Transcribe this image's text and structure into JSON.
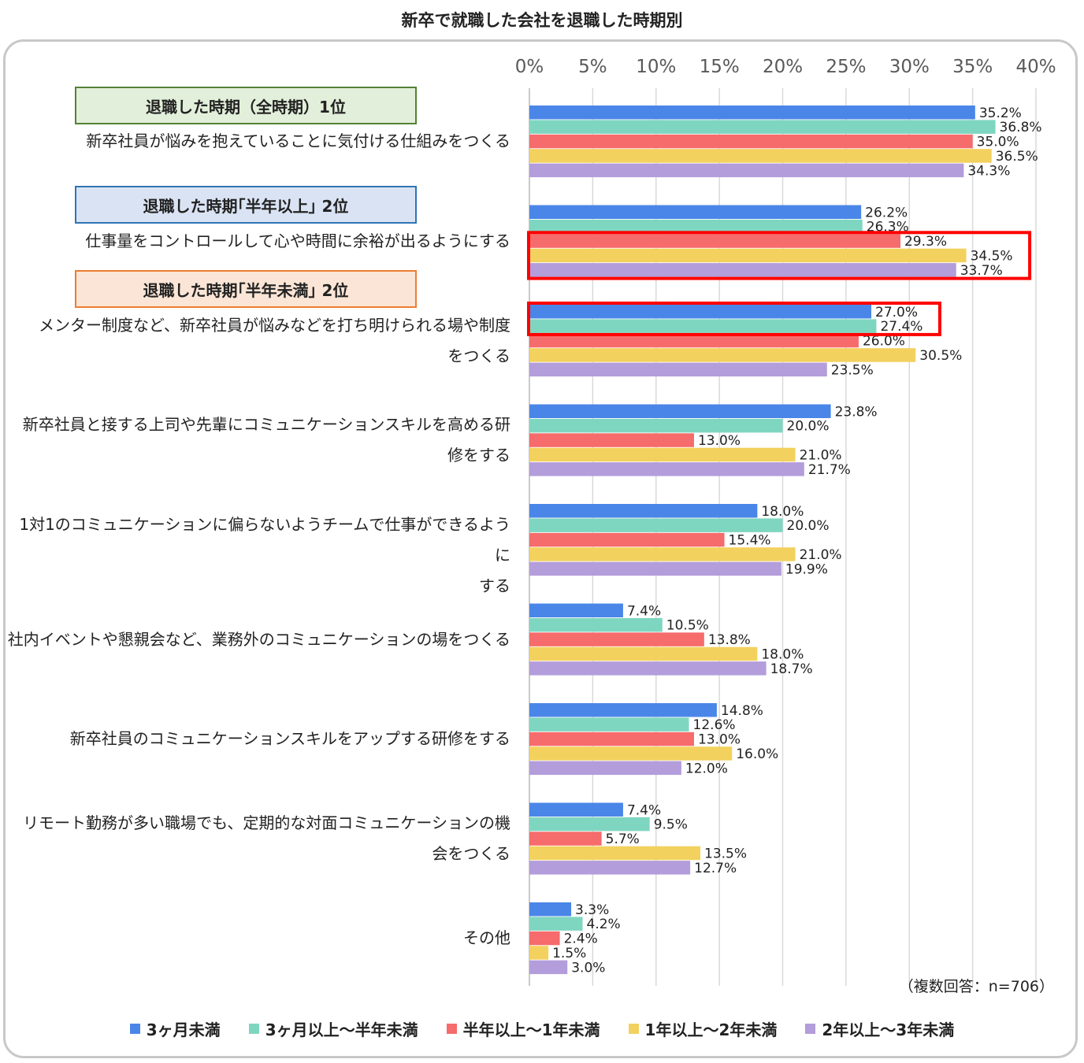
{
  "chart_data": {
    "type": "bar",
    "orientation": "horizontal",
    "title": "新卒で就職した会社を退職した時期別",
    "xlim": [
      0,
      40
    ],
    "xticks": [
      "0%",
      "5%",
      "10%",
      "15%",
      "20%",
      "25%",
      "30%",
      "35%",
      "40%"
    ],
    "grid": true,
    "legend_position": "bottom",
    "categories": [
      [
        "新卒社員が悩みを抱えていることに気付ける仕組みをつくる"
      ],
      [
        "仕事量をコントロールして心や時間に余裕が出るようにする"
      ],
      [
        "メンター制度など、新卒社員が悩みなどを打ち明けられる場や制度",
        "をつくる"
      ],
      [
        "新卒社員と接する上司や先輩にコミュニケーションスキルを高める研",
        "修をする"
      ],
      [
        "1対1のコミュニケーションに偏らないようチームで仕事ができるように",
        "する"
      ],
      [
        "社内イベントや懇親会など、業務外のコミュニケーションの場をつくる"
      ],
      [
        "新卒社員のコミュニケーションスキルをアップする研修をする"
      ],
      [
        "リモート勤務が多い職場でも、定期的な対面コミュニケーションの機",
        "会をつくる"
      ],
      [
        "その他"
      ]
    ],
    "series": [
      {
        "name": "3ヶ月未満",
        "color": "#4a86e8",
        "values": [
          35.2,
          26.2,
          27.0,
          23.8,
          18.0,
          7.4,
          14.8,
          7.4,
          3.3
        ]
      },
      {
        "name": "3ヶ月以上～半年未満",
        "color": "#7fd6c0",
        "values": [
          36.8,
          26.3,
          27.4,
          20.0,
          20.0,
          10.5,
          12.6,
          9.5,
          4.2
        ]
      },
      {
        "name": "半年以上～1年未満",
        "color": "#f66b6b",
        "values": [
          35.0,
          29.3,
          26.0,
          13.0,
          15.4,
          13.8,
          13.0,
          5.7,
          2.4
        ]
      },
      {
        "name": "1年以上～2年未満",
        "color": "#f3d15e",
        "values": [
          36.5,
          34.5,
          30.5,
          21.0,
          21.0,
          18.0,
          16.0,
          13.5,
          1.5
        ]
      },
      {
        "name": "2年以上～3年未満",
        "color": "#b39ddb",
        "values": [
          34.3,
          33.7,
          23.5,
          21.7,
          19.9,
          18.7,
          12.0,
          12.7,
          3.0
        ]
      }
    ],
    "value_labels": [
      [
        "35.2%",
        "36.8%",
        "35.0%",
        "36.5%",
        "34.3%"
      ],
      [
        "26.2%",
        "26.3%",
        "29.3%",
        "34.5%",
        "33.7%"
      ],
      [
        "27.0%",
        "27.4%",
        "26.0%",
        "30.5%",
        "23.5%"
      ],
      [
        "23.8%",
        "20.0%",
        "13.0%",
        "21.0%",
        "21.7%"
      ],
      [
        "18.0%",
        "20.0%",
        "15.4%",
        "21.0%",
        "19.9%"
      ],
      [
        "7.4%",
        "10.5%",
        "13.8%",
        "18.0%",
        "18.7%"
      ],
      [
        "14.8%",
        "12.6%",
        "13.0%",
        "16.0%",
        "12.0%"
      ],
      [
        "7.4%",
        "9.5%",
        "5.7%",
        "13.5%",
        "12.7%"
      ],
      [
        "3.3%",
        "4.2%",
        "2.4%",
        "1.5%",
        "3.0%"
      ]
    ],
    "highlights": [
      {
        "category_index": 1,
        "series_indices": [
          2,
          3,
          4
        ],
        "color": "#ff0000"
      },
      {
        "category_index": 2,
        "series_indices": [
          0,
          1
        ],
        "color": "#ff0000"
      }
    ],
    "tags": [
      {
        "text": "退職した時期（全時期）1位",
        "category_index": 0
      },
      {
        "text": "退職した時期｢半年以上｣ 2位",
        "category_index": 1
      },
      {
        "text": "退職した時期｢半年未満｣ 2位",
        "category_index": 2
      }
    ],
    "note": "（複数回答：n=706）"
  }
}
